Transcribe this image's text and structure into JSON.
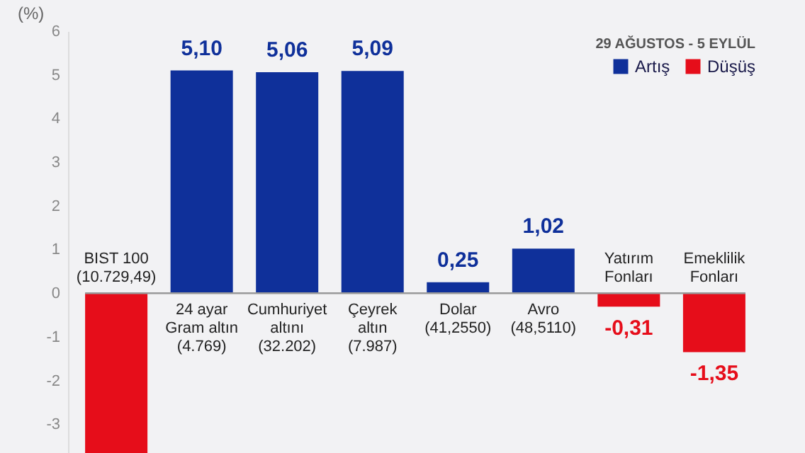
{
  "chart_data": {
    "type": "bar",
    "ylabel": "(%)",
    "legend_title": "29 AĞUSTOS - 5 EYLÜL",
    "legend": "top right",
    "categories": [
      "BIST 100\n(10.729,49)",
      "24 ayar\nGram altın\n(4.769)",
      "Cumhuriyet\naltını\n(32.202)",
      "Çeyrek\naltın\n(7.987)",
      "Dolar\n(41,2550)",
      "Avro\n(48,5110)",
      "Yatırım\nFonları",
      "Emeklilik\nFonları"
    ],
    "series": [
      {
        "name": "Artış",
        "color": "#0f309a",
        "values": [
          null,
          5.1,
          5.06,
          5.09,
          0.25,
          1.02,
          null,
          null
        ],
        "value_labels": [
          null,
          "5,10",
          "5,06",
          "5,09",
          "0,25",
          "1,02",
          null,
          null
        ]
      },
      {
        "name": "Düşüş",
        "color": "#e60d1a",
        "values": [
          -3.66,
          null,
          null,
          null,
          null,
          null,
          -0.31,
          -1.35
        ],
        "value_labels": [
          null,
          null,
          null,
          null,
          null,
          null,
          "-0,31",
          "-1,35"
        ]
      }
    ],
    "ylim": [
      -3.66,
      6
    ],
    "yticks": [
      -3,
      -2,
      -1,
      0,
      1,
      2,
      3,
      4,
      5,
      6
    ]
  }
}
